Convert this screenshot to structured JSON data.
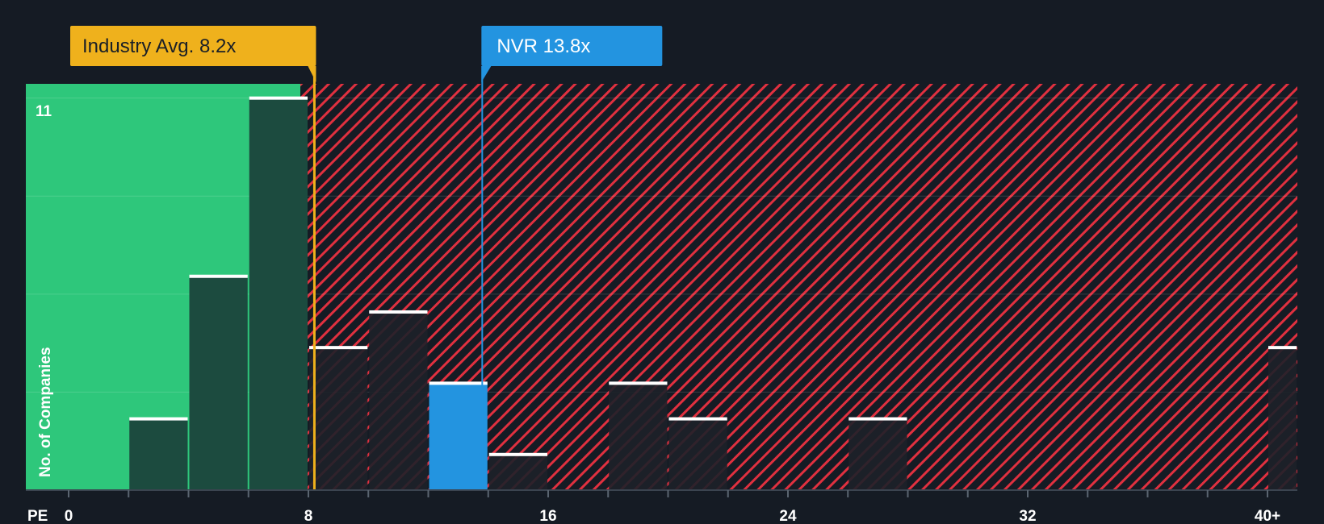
{
  "chart_data": {
    "type": "bar",
    "title": "",
    "xlabel": "PE",
    "ylabel": "No. of Companies",
    "x_ticks": [
      "0",
      "8",
      "16",
      "24",
      "32",
      "40+"
    ],
    "x_tick_values": [
      0,
      8,
      16,
      24,
      32,
      40
    ],
    "xlim": [
      0,
      41
    ],
    "ylim": [
      0,
      11.4
    ],
    "y_max_label": "11",
    "bins": [
      {
        "from": 2,
        "to": 4,
        "count": 2,
        "zone": "undervalued"
      },
      {
        "from": 4,
        "to": 6,
        "count": 6,
        "zone": "undervalued"
      },
      {
        "from": 6,
        "to": 8,
        "count": 11,
        "zone": "undervalued"
      },
      {
        "from": 8,
        "to": 10,
        "count": 4,
        "zone": "overvalued"
      },
      {
        "from": 10,
        "to": 12,
        "count": 5,
        "zone": "overvalued"
      },
      {
        "from": 12,
        "to": 14,
        "count": 3,
        "zone": "company"
      },
      {
        "from": 14,
        "to": 16,
        "count": 1,
        "zone": "overvalued"
      },
      {
        "from": 18,
        "to": 20,
        "count": 3,
        "zone": "overvalued"
      },
      {
        "from": 20,
        "to": 22,
        "count": 2,
        "zone": "overvalued"
      },
      {
        "from": 26,
        "to": 28,
        "count": 2,
        "zone": "overvalued"
      },
      {
        "from": 40,
        "to": 41,
        "count": 4,
        "zone": "overvalued"
      }
    ],
    "industry_avg": {
      "label": "Industry Avg. 8.2x",
      "value": 8.2
    },
    "company": {
      "label": "NVR 13.8x",
      "value": 13.8
    },
    "colors": {
      "background": "#151b24",
      "undervalued_zone": "#2ec77b",
      "undervalued_bar": "#1c4b3f",
      "overvalued_stripe": "#e0303f",
      "overvalued_bar": "#1d2129",
      "company_bar": "#2394e0",
      "industry_callout": "#efb11c",
      "company_callout": "#2394e0",
      "bar_cap": "#ffffff",
      "grid": "#2f3742"
    }
  }
}
